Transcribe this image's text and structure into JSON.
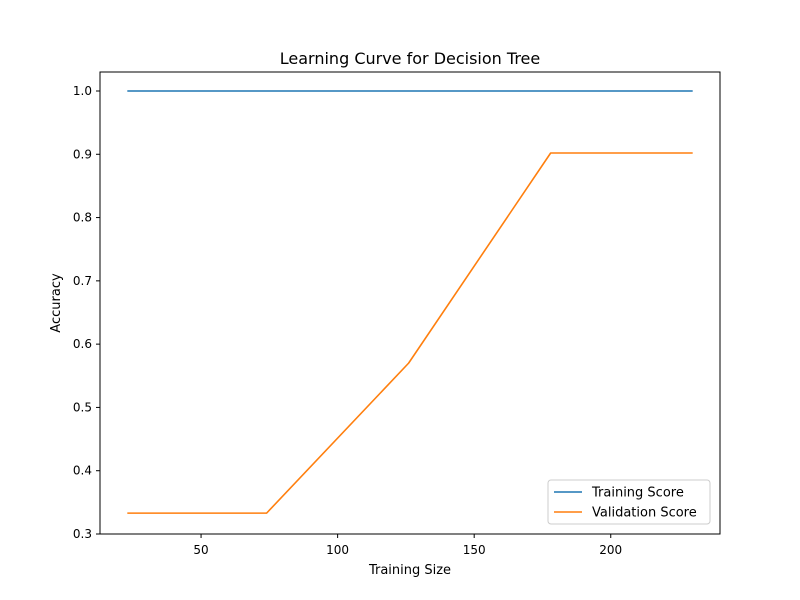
{
  "chart_data": {
    "type": "line",
    "title": "Learning Curve for Decision Tree",
    "xlabel": "Training Size",
    "ylabel": "Accuracy",
    "xlim": [
      13,
      240
    ],
    "ylim": [
      0.3,
      1.03
    ],
    "xticks": [
      50,
      100,
      150,
      200
    ],
    "yticks": [
      0.3,
      0.4,
      0.5,
      0.6,
      0.7,
      0.8,
      0.9,
      1.0
    ],
    "xtick_labels": [
      "50",
      "100",
      "150",
      "200"
    ],
    "ytick_labels": [
      "0.3",
      "0.4",
      "0.5",
      "0.6",
      "0.7",
      "0.8",
      "0.9",
      "1.0"
    ],
    "grid": false,
    "legend_position": "bottom-right",
    "x": [
      23,
      74,
      126,
      178,
      230
    ],
    "series": [
      {
        "name": "Training Score",
        "color": "#1f77b4",
        "values": [
          1.0,
          1.0,
          1.0,
          1.0,
          1.0
        ]
      },
      {
        "name": "Validation Score",
        "color": "#ff7f0e",
        "values": [
          0.333,
          0.333,
          0.57,
          0.902,
          0.902
        ]
      }
    ]
  }
}
